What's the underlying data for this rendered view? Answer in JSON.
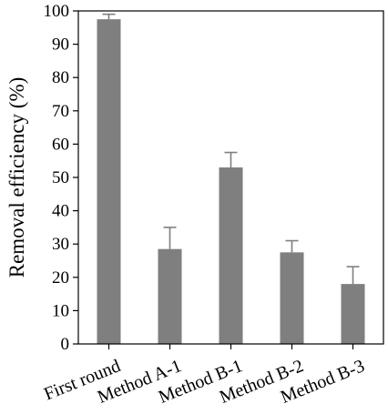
{
  "chart_data": {
    "type": "bar",
    "title": "",
    "xlabel": "",
    "ylabel": "Removal efficiency (%)",
    "ylim": [
      0,
      100
    ],
    "yticks": [
      0,
      10,
      20,
      30,
      40,
      50,
      60,
      70,
      80,
      90,
      100
    ],
    "categories": [
      "First round",
      "Method A-1",
      "Method B-1",
      "Method B-2",
      "Method B-3"
    ],
    "values": [
      97.5,
      28.5,
      53.0,
      27.5,
      18.0
    ],
    "error_upper": [
      1.5,
      6.5,
      4.5,
      3.5,
      5.2
    ],
    "bar_color": "#7f7f7f",
    "grid": false
  }
}
